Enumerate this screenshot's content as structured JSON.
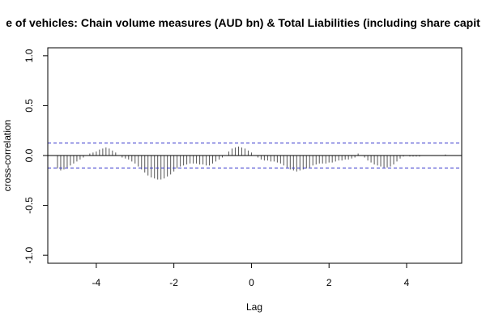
{
  "chart_data": {
    "type": "bar",
    "title": "e of vehicles: Chain volume measures (AUD bn) & Total Liabilities (including share capit",
    "xlabel": "Lag",
    "ylabel": "cross-correlation",
    "xlim": [
      -5.25,
      5.42
    ],
    "ylim": [
      -1.08,
      1.08
    ],
    "xticks": [
      -4,
      -2,
      0,
      2,
      4
    ],
    "yticks": [
      -1.0,
      -0.5,
      0.0,
      0.5,
      1.0
    ],
    "xtick_labels": [
      "-4",
      "-2",
      "0",
      "2",
      "4"
    ],
    "ytick_labels": [
      "-1.0",
      "-0.5",
      "0.0",
      "0.5",
      "1.0"
    ],
    "confidence_limit": 0.125,
    "grid": false,
    "colors": {
      "bars": "#555555",
      "ci": "#3333cc",
      "zero": "#000000",
      "frame": "#000000"
    },
    "x": [
      -5.0,
      -4.917,
      -4.833,
      -4.75,
      -4.667,
      -4.583,
      -4.5,
      -4.417,
      -4.333,
      -4.25,
      -4.167,
      -4.083,
      -4.0,
      -3.917,
      -3.833,
      -3.75,
      -3.667,
      -3.583,
      -3.5,
      -3.417,
      -3.333,
      -3.25,
      -3.167,
      -3.083,
      -3.0,
      -2.917,
      -2.833,
      -2.75,
      -2.667,
      -2.583,
      -2.5,
      -2.417,
      -2.333,
      -2.25,
      -2.167,
      -2.083,
      -2.0,
      -1.917,
      -1.833,
      -1.75,
      -1.667,
      -1.583,
      -1.5,
      -1.417,
      -1.333,
      -1.25,
      -1.167,
      -1.083,
      -1.0,
      -0.917,
      -0.833,
      -0.75,
      -0.667,
      -0.583,
      -0.5,
      -0.417,
      -0.333,
      -0.25,
      -0.167,
      -0.083,
      0.0,
      0.083,
      0.167,
      0.25,
      0.333,
      0.417,
      0.5,
      0.583,
      0.667,
      0.75,
      0.833,
      0.917,
      1.0,
      1.083,
      1.167,
      1.25,
      1.333,
      1.417,
      1.5,
      1.583,
      1.667,
      1.75,
      1.833,
      1.917,
      2.0,
      2.083,
      2.167,
      2.25,
      2.333,
      2.417,
      2.5,
      2.583,
      2.667,
      2.75,
      2.833,
      2.917,
      3.0,
      3.083,
      3.167,
      3.25,
      3.333,
      3.417,
      3.5,
      3.583,
      3.667,
      3.75,
      3.833,
      3.917,
      4.0,
      4.083,
      4.167,
      4.25,
      4.333,
      4.417,
      4.5,
      4.583,
      4.667,
      4.75,
      4.833,
      4.917,
      5.0
    ],
    "values": [
      -0.13,
      -0.15,
      -0.14,
      -0.12,
      -0.1,
      -0.08,
      -0.06,
      -0.04,
      -0.02,
      0.0,
      0.02,
      0.03,
      0.04,
      0.06,
      0.07,
      0.08,
      0.07,
      0.05,
      0.03,
      0.0,
      -0.02,
      -0.03,
      -0.04,
      -0.06,
      -0.08,
      -0.11,
      -0.14,
      -0.17,
      -0.2,
      -0.22,
      -0.23,
      -0.24,
      -0.24,
      -0.23,
      -0.21,
      -0.19,
      -0.16,
      -0.13,
      -0.11,
      -0.1,
      -0.09,
      -0.08,
      -0.08,
      -0.08,
      -0.09,
      -0.09,
      -0.1,
      -0.1,
      -0.08,
      -0.06,
      -0.04,
      -0.02,
      0.0,
      0.04,
      0.07,
      0.08,
      0.09,
      0.08,
      0.07,
      0.05,
      0.03,
      0.0,
      -0.02,
      -0.04,
      -0.05,
      -0.05,
      -0.06,
      -0.06,
      -0.07,
      -0.08,
      -0.1,
      -0.12,
      -0.14,
      -0.15,
      -0.16,
      -0.15,
      -0.14,
      -0.13,
      -0.12,
      -0.1,
      -0.09,
      -0.08,
      -0.08,
      -0.08,
      -0.07,
      -0.07,
      -0.06,
      -0.05,
      -0.05,
      -0.04,
      -0.04,
      -0.03,
      -0.02,
      0.02,
      0.0,
      -0.02,
      -0.05,
      -0.07,
      -0.09,
      -0.1,
      -0.11,
      -0.12,
      -0.12,
      -0.11,
      -0.09,
      -0.06,
      -0.03,
      -0.01,
      0.0,
      -0.01,
      -0.01,
      -0.01,
      -0.01,
      0.0,
      0.0,
      0.0,
      0.0,
      0.0,
      0.0,
      0.0,
      0.01
    ]
  }
}
